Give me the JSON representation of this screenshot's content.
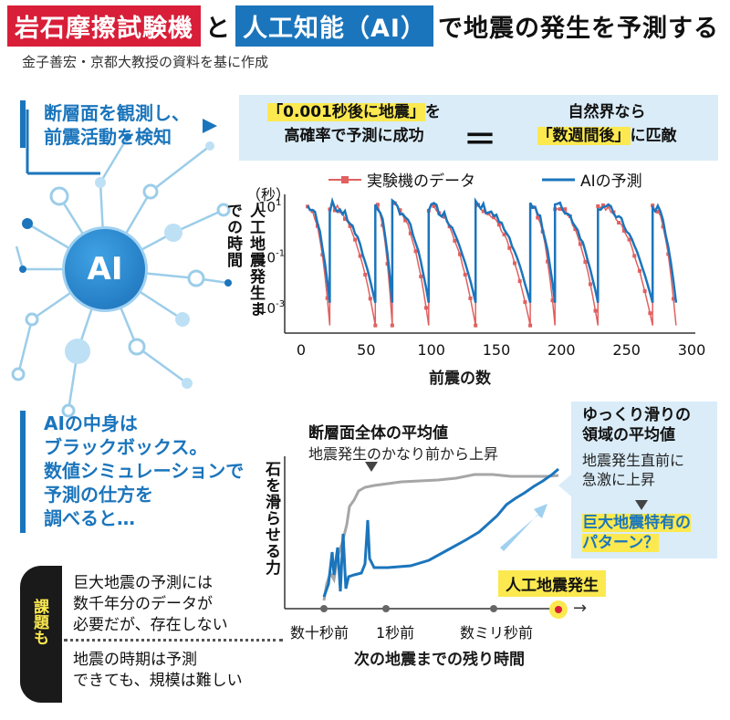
{
  "title": {
    "part1": "岩石摩擦試験機",
    "and": "と",
    "part2": "人工知能（AI）",
    "rest": "で地震の発生を予測する"
  },
  "credit": "金子善宏・京都大教授の資料を基に作成",
  "observe": {
    "line1": "断層面を観測し、",
    "line2": "前震活動を検知"
  },
  "banner": {
    "left_hl": "「0.001秒後に地震」",
    "left_tail": "を",
    "left_line2": "高確率で予測に成功",
    "equals": "＝",
    "right_line1": "自然界なら",
    "right_hl": "「数週間後」",
    "right_tail": "に匹敵"
  },
  "ai_label": "AI",
  "ai_inside": {
    "line1": "AIの中身は",
    "line2": "ブラックボックス。",
    "line3": "数値シミュレーションで",
    "line4": "予測の仕方を",
    "line5": "調べると…"
  },
  "colors": {
    "red": "#e06060",
    "blue": "#1b75bc",
    "gray": "#a6a6a6",
    "title_red": "#d81e38",
    "yellow": "#fbe94f",
    "light_blue": "#d9ecf8"
  },
  "chart_data": [
    {
      "type": "line",
      "ylabel": "人工地震発生までの時間",
      "yunit": "（秒）",
      "xlabel": "前震の数",
      "xlim": [
        0,
        300
      ],
      "ylim": [
        0.0001,
        30
      ],
      "yscale": "log",
      "xticks": [
        "0",
        "50",
        "100",
        "150",
        "200",
        "250",
        "300"
      ],
      "yticks": [
        {
          "base": "10",
          "exp": "1",
          "value": 10
        },
        {
          "base": "10",
          "exp": "-1",
          "value": 0.1
        },
        {
          "base": "10",
          "exp": "-3",
          "value": 0.001
        }
      ],
      "cycles": [
        {
          "start": 5,
          "end": 22
        },
        {
          "start": 22,
          "end": 57
        },
        {
          "start": 57,
          "end": 70
        },
        {
          "start": 70,
          "end": 98
        },
        {
          "start": 98,
          "end": 134
        },
        {
          "start": 134,
          "end": 176
        },
        {
          "start": 176,
          "end": 195
        },
        {
          "start": 195,
          "end": 228
        },
        {
          "start": 228,
          "end": 270
        },
        {
          "start": 270,
          "end": 288
        }
      ],
      "cycle_start_value": 10,
      "cycle_end_value_data": 0.0002,
      "cycle_end_value_ai": 0.001,
      "series": [
        {
          "name": "実験機のデータ",
          "color": "#e06060",
          "marker": "square"
        },
        {
          "name": "AIの予測",
          "color": "#1b75bc",
          "marker": "none"
        }
      ]
    },
    {
      "type": "line",
      "ylabel": "石を滑らせる力",
      "xlabel": "次の地震までの残り時間",
      "xticks": [
        "数十秒前",
        "1秒前",
        "数ミリ秒前"
      ],
      "series": [
        {
          "name": "断層面全体の平均値",
          "color": "#a6a6a6"
        },
        {
          "name": "ゆっくり滑りの領域の平均値",
          "color": "#1b75bc"
        }
      ]
    }
  ],
  "legend": {
    "data": "実験機のデータ",
    "ai": "AIの予測"
  },
  "bottom": {
    "ann_gray_title": "断層面全体の平均値",
    "ann_gray_sub": "地震発生のかなり前から上昇",
    "ann_blue_title1": "ゆっくり滑りの",
    "ann_blue_title2": "領域の平均値",
    "ann_blue_sub1": "地震発生直前に",
    "ann_blue_sub2": "急激に上昇",
    "pattern1": "巨大地震特有の",
    "pattern2": "パターン？",
    "quake": "人工地震発生",
    "arrow": "→"
  },
  "issues": {
    "tab": "課題も",
    "item1_l1": "巨大地震の予測には",
    "item1_l2": "数千年分のデータが",
    "item1_l3": "必要だが、存在しない",
    "item2_l1": "地震の時期は予測",
    "item2_l2": "できても、規模は難しい"
  }
}
